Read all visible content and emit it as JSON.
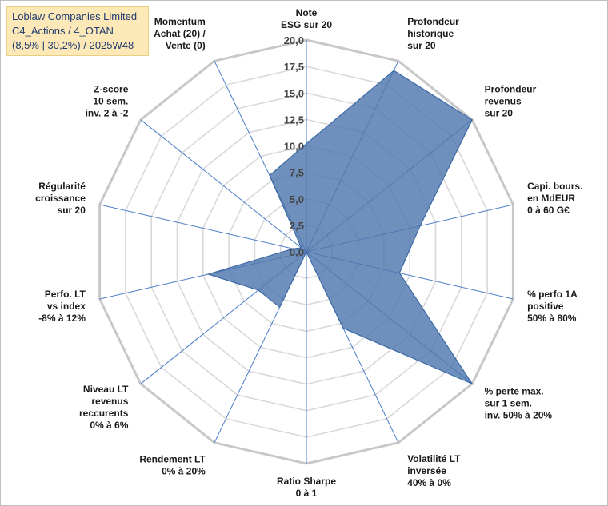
{
  "header": {
    "title_lines": [
      "Loblaw Companies Limited",
      "C4_Actions / 4_OTAN",
      "(8,5% | 30,2%) / 2025W48"
    ]
  },
  "chart_data": {
    "type": "radar",
    "scale": {
      "min": 0,
      "max": 20,
      "step": 2.5
    },
    "tick_labels": [
      "0,0",
      "2,5",
      "5,0",
      "7,5",
      "10,0",
      "12,5",
      "15,0",
      "17,5",
      "20,0"
    ],
    "axes": [
      {
        "label": [
          "Note",
          "ESG sur 20"
        ]
      },
      {
        "label": [
          "Profondeur",
          "historique",
          "sur 20"
        ]
      },
      {
        "label": [
          "Profondeur",
          "revenus",
          "sur 20"
        ]
      },
      {
        "label": [
          "Capi. bours.",
          "en MdEUR",
          "0 à 60 G€"
        ]
      },
      {
        "label": [
          "% perfo 1A",
          "positive",
          "50% à 80%"
        ]
      },
      {
        "label": [
          "% perte max.",
          "sur 1 sem.",
          "inv. 50% à 20%"
        ]
      },
      {
        "label": [
          "Volatilité LT",
          "inversée",
          "40% à 0%"
        ]
      },
      {
        "label": [
          "Ratio Sharpe",
          "0 à 1"
        ]
      },
      {
        "label": [
          "Rendement LT",
          "0% à 20%"
        ]
      },
      {
        "label": [
          "Niveau LT",
          "revenus",
          "reccurents",
          "0% à 6%"
        ]
      },
      {
        "label": [
          "Perfo. LT",
          "vs index",
          "-8% à 12%"
        ]
      },
      {
        "label": [
          "Régularité",
          "croissance",
          "sur 20"
        ]
      },
      {
        "label": [
          "Z-score",
          "10 sem.",
          "inv. 2 à -2"
        ]
      },
      {
        "label": [
          "Momentum",
          "Achat (20) /",
          "Vente (0)"
        ]
      }
    ],
    "series": [
      {
        "values": [
          10.2,
          19.0,
          20.0,
          11.0,
          9.0,
          20.0,
          8.0,
          0.0,
          5.8,
          5.8,
          9.5,
          1.3,
          0.6,
          8.0
        ]
      }
    ],
    "colors": {
      "fill": "#4f78ad",
      "stroke": "#3c6aa6",
      "grid": "#d9d9d9",
      "spoke": "#4a7bc8"
    }
  }
}
